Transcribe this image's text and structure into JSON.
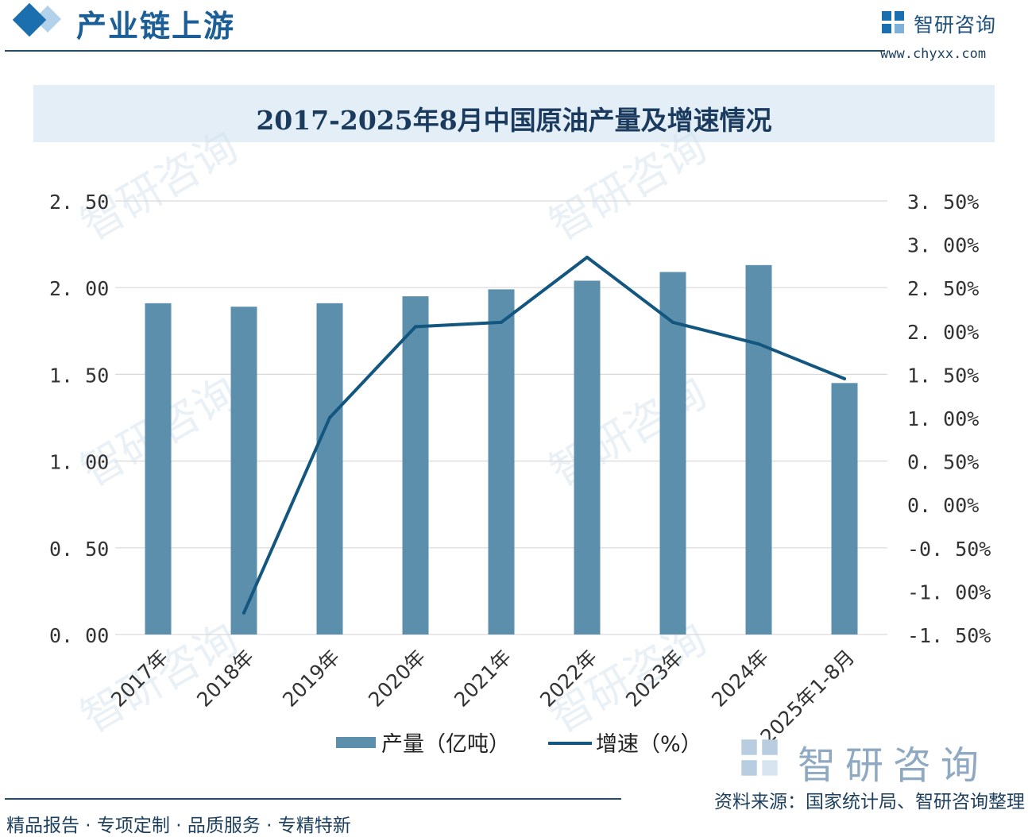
{
  "header": {
    "section_title": "产业链上游",
    "brand_name": "智研咨询",
    "brand_url": "www.chyxx.com"
  },
  "chart_data": {
    "type": "bar",
    "title": "2017-2025年8月中国原油产量及增速情况",
    "categories": [
      "2017年",
      "2018年",
      "2019年",
      "2020年",
      "2021年",
      "2022年",
      "2023年",
      "2024年",
      "2025年1-8月"
    ],
    "series": [
      {
        "name": "产量（亿吨）",
        "type": "bar",
        "axis": "left",
        "color": "#5b8fac",
        "values": [
          1.91,
          1.89,
          1.91,
          1.95,
          1.99,
          2.04,
          2.09,
          2.13,
          1.45
        ]
      },
      {
        "name": "增速（%）",
        "type": "line",
        "axis": "right",
        "color": "#13567f",
        "values": [
          null,
          -1.25,
          1.0,
          2.05,
          2.1,
          2.85,
          2.1,
          1.85,
          1.45
        ]
      }
    ],
    "y_left": {
      "ylim": [
        0,
        2.5
      ],
      "ticks": [
        0,
        0.5,
        1.0,
        1.5,
        2.0,
        2.5
      ],
      "tick_labels": [
        "0. 00",
        "0. 50",
        "1. 00",
        "1. 50",
        "2. 00",
        "2. 50"
      ]
    },
    "y_right": {
      "ylim": [
        -1.5,
        3.5
      ],
      "ticks": [
        -1.5,
        -1.0,
        -0.5,
        0.0,
        0.5,
        1.0,
        1.5,
        2.0,
        2.5,
        3.0,
        3.5
      ],
      "tick_labels": [
        "-1. 50%",
        "-1. 00%",
        "-0. 50%",
        "0. 00%",
        "0. 50%",
        "1. 00%",
        "1. 50%",
        "2. 00%",
        "2. 50%",
        "3. 00%",
        "3. 50%"
      ]
    },
    "grid": true,
    "legend_position": "bottom-center"
  },
  "footer": {
    "watermark_brand": "智研咨询",
    "source": "资料来源：国家统计局、智研咨询整理",
    "slogan": "精品报告 · 专项定制 · 品质服务 · 专精特新"
  }
}
